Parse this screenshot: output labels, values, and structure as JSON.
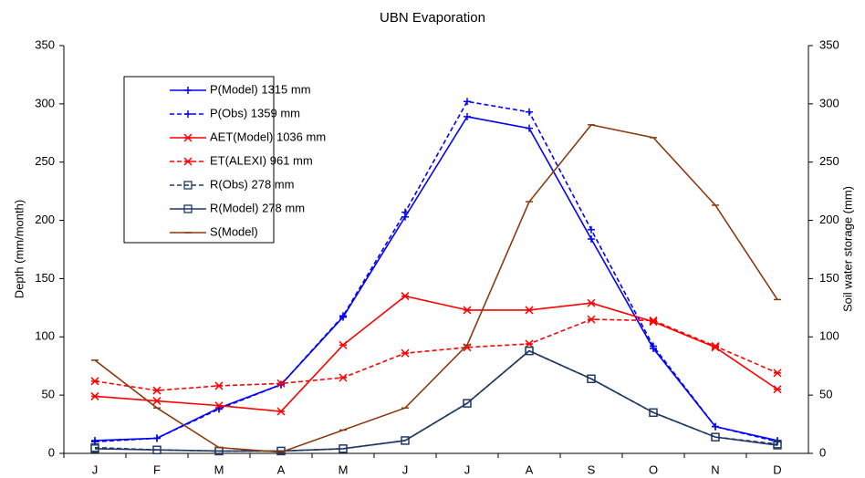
{
  "chart_data": {
    "type": "line",
    "title": "UBN Evaporation",
    "y_label": "Depth (mm/month)",
    "y2_label": "Soil water storage (mm)",
    "categories": [
      "J",
      "F",
      "M",
      "A",
      "M",
      "J",
      "J",
      "A",
      "S",
      "O",
      "N",
      "D"
    ],
    "ylim": [
      0,
      350
    ],
    "yticks": [
      0,
      50,
      100,
      150,
      200,
      250,
      300,
      350
    ],
    "y2lim": [
      0,
      350
    ],
    "y2ticks": [
      0,
      50,
      100,
      150,
      200,
      250,
      300,
      350
    ],
    "legend": "top-left",
    "series": [
      {
        "name": "P(Model) 1315 mm",
        "color": "#0000ff",
        "dashed": false,
        "marker": "plus",
        "values": [
          11,
          13,
          39,
          59,
          117,
          203,
          289,
          279,
          184,
          90,
          23,
          11
        ]
      },
      {
        "name": "P(Obs) 1359 mm",
        "color": "#0000ff",
        "dashed": true,
        "marker": "plus",
        "values": [
          10,
          13,
          38,
          59,
          118,
          207,
          302,
          293,
          192,
          92,
          23,
          10
        ]
      },
      {
        "name": "AET(Model) 1036 mm",
        "color": "#ff0000",
        "dashed": false,
        "marker": "star",
        "values": [
          49,
          45,
          41,
          36,
          93,
          135,
          123,
          123,
          129,
          113,
          91,
          55
        ]
      },
      {
        "name": "ET(ALEXI) 961 mm",
        "color": "#ff0000",
        "dashed": true,
        "marker": "star",
        "values": [
          62,
          54,
          58,
          60,
          65,
          86,
          91,
          94,
          115,
          114,
          92,
          69
        ]
      },
      {
        "name": "R(Obs) 278 mm",
        "color": "#1f3864",
        "dashed": true,
        "marker": "square",
        "values": [
          5,
          3,
          2,
          2,
          4,
          11,
          43,
          88,
          64,
          35,
          14,
          8
        ]
      },
      {
        "name": "R(Model) 278 mm",
        "color": "#1f3864",
        "dashed": false,
        "marker": "square",
        "values": [
          4,
          3,
          2,
          2,
          4,
          11,
          43,
          88,
          64,
          35,
          14,
          7
        ]
      },
      {
        "name": "S(Model)",
        "color": "#8b3a0f",
        "dashed": false,
        "marker": "dash",
        "axis": "y2",
        "values": [
          80,
          39,
          5,
          1,
          20,
          39,
          93,
          216,
          282,
          271,
          213,
          132
        ]
      }
    ]
  }
}
